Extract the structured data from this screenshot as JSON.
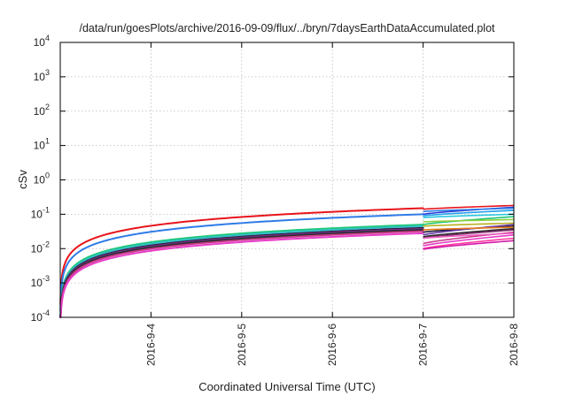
{
  "chart_data": {
    "type": "line",
    "title": "/data/run/goesPlots/archive/2016-09-09/flux/../bryn/7daysEarthDataAccumulated.plot",
    "xlabel": "Coordinated Universal Time (UTC)",
    "ylabel": "cSv",
    "y_scale": "log",
    "ylim": [
      0.0001,
      10000
    ],
    "xlim": [
      "2016-9-3",
      "2016-9-8"
    ],
    "x_ticks": [
      "2016-9-4",
      "2016-9-5",
      "2016-9-6",
      "2016-9-7",
      "2016-9-8"
    ],
    "y_ticks": [
      {
        "base": "10",
        "exp": "-4",
        "value": 0.0001
      },
      {
        "base": "10",
        "exp": "-3",
        "value": 0.001
      },
      {
        "base": "10",
        "exp": "-2",
        "value": 0.01
      },
      {
        "base": "10",
        "exp": "-1",
        "value": 0.1
      },
      {
        "base": "10",
        "exp": "0",
        "value": 1
      },
      {
        "base": "10",
        "exp": "1",
        "value": 10
      },
      {
        "base": "10",
        "exp": "2",
        "value": 100
      },
      {
        "base": "10",
        "exp": "3",
        "value": 1000
      },
      {
        "base": "10",
        "exp": "4",
        "value": 10000
      }
    ],
    "grid": true,
    "legend": "none",
    "series": [
      {
        "color": "#e8141c",
        "end_value": 0.15
      },
      {
        "color": "#2f7be8",
        "end_value": 0.1
      },
      {
        "color": "#1fc77a",
        "end_value": 0.05
      },
      {
        "color": "#32c0c8",
        "end_value": 0.045
      },
      {
        "color": "#1a1a40",
        "end_value": 0.04
      },
      {
        "color": "#7a2a6a",
        "end_value": 0.038
      },
      {
        "color": "#6a3aa8",
        "end_value": 0.036
      },
      {
        "color": "#2b2b2b",
        "end_value": 0.035
      },
      {
        "color": "#c83a8a",
        "end_value": 0.032
      },
      {
        "color": "#e83cc8",
        "end_value": 0.028
      }
    ],
    "last_day_series": [
      {
        "color": "#e8141c",
        "start": 0.14,
        "end": 0.18
      },
      {
        "color": "#2c3cd8",
        "start": 0.1,
        "end": 0.16
      },
      {
        "color": "#2f7be8",
        "start": 0.12,
        "end": 0.15
      },
      {
        "color": "#1fa0e8",
        "start": 0.09,
        "end": 0.13
      },
      {
        "color": "#28c8e0",
        "start": 0.08,
        "end": 0.1
      },
      {
        "color": "#1fc77a",
        "start": 0.05,
        "end": 0.085
      },
      {
        "color": "#8ad03a",
        "start": 0.06,
        "end": 0.07
      },
      {
        "color": "#b8b020",
        "start": 0.045,
        "end": 0.055
      },
      {
        "color": "#1a1a40",
        "start": 0.03,
        "end": 0.045
      },
      {
        "color": "#6a3aa8",
        "start": 0.025,
        "end": 0.05
      },
      {
        "color": "#e87a1a",
        "start": 0.035,
        "end": 0.042
      },
      {
        "color": "#2b2b2b",
        "start": 0.022,
        "end": 0.038
      },
      {
        "color": "#7a2a6a",
        "start": 0.02,
        "end": 0.035
      },
      {
        "color": "#c83a8a",
        "start": 0.014,
        "end": 0.03
      },
      {
        "color": "#e83cc8",
        "start": 0.012,
        "end": 0.025
      },
      {
        "color": "#ff3aa0",
        "start": 0.01,
        "end": 0.02
      },
      {
        "color": "#d01aa8",
        "start": 0.0095,
        "end": 0.017
      },
      {
        "color": "#f060c0",
        "start": 0.02,
        "end": 0.028
      }
    ]
  }
}
